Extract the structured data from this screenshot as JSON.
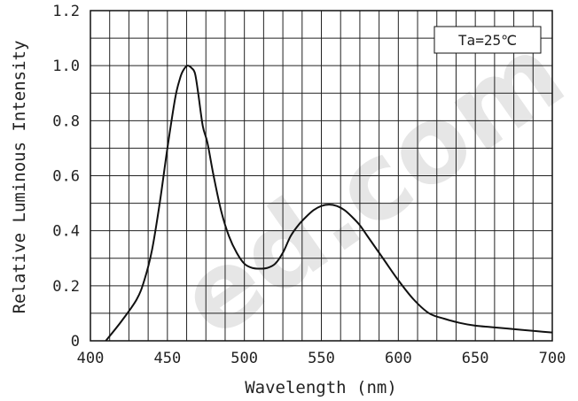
{
  "chart_data": {
    "type": "line",
    "xlabel": "Wavelength (nm)",
    "ylabel": "Relative Luminous Intensity",
    "xlim": [
      400,
      700
    ],
    "ylim": [
      0,
      1.2
    ],
    "x_ticks": [
      "400",
      "450",
      "500",
      "550",
      "600",
      "650",
      "700"
    ],
    "y_ticks": [
      "0",
      "0.2",
      "0.4",
      "0.6",
      "0.8",
      "1.0",
      "1.2"
    ],
    "annotation": "Ta=25℃",
    "grid": true,
    "watermark": "ed.com",
    "series": [
      {
        "x": [
          410,
          420,
          430,
          435,
          440,
          445,
          450,
          455,
          458,
          460,
          463,
          466,
          468,
          470,
          473,
          476,
          480,
          485,
          490,
          495,
          500,
          505,
          510,
          515,
          520,
          525,
          530,
          535,
          540,
          545,
          550,
          555,
          560,
          565,
          570,
          575,
          580,
          590,
          600,
          610,
          620,
          630,
          640,
          650,
          660,
          670,
          680,
          690,
          700
        ],
        "y": [
          0.0,
          0.07,
          0.15,
          0.22,
          0.33,
          0.5,
          0.7,
          0.88,
          0.95,
          0.98,
          1.0,
          0.99,
          0.97,
          0.9,
          0.78,
          0.72,
          0.6,
          0.47,
          0.38,
          0.32,
          0.28,
          0.265,
          0.262,
          0.265,
          0.28,
          0.32,
          0.38,
          0.42,
          0.45,
          0.475,
          0.49,
          0.495,
          0.49,
          0.475,
          0.45,
          0.42,
          0.38,
          0.3,
          0.22,
          0.15,
          0.1,
          0.08,
          0.065,
          0.055,
          0.05,
          0.045,
          0.04,
          0.035,
          0.03
        ]
      }
    ]
  }
}
